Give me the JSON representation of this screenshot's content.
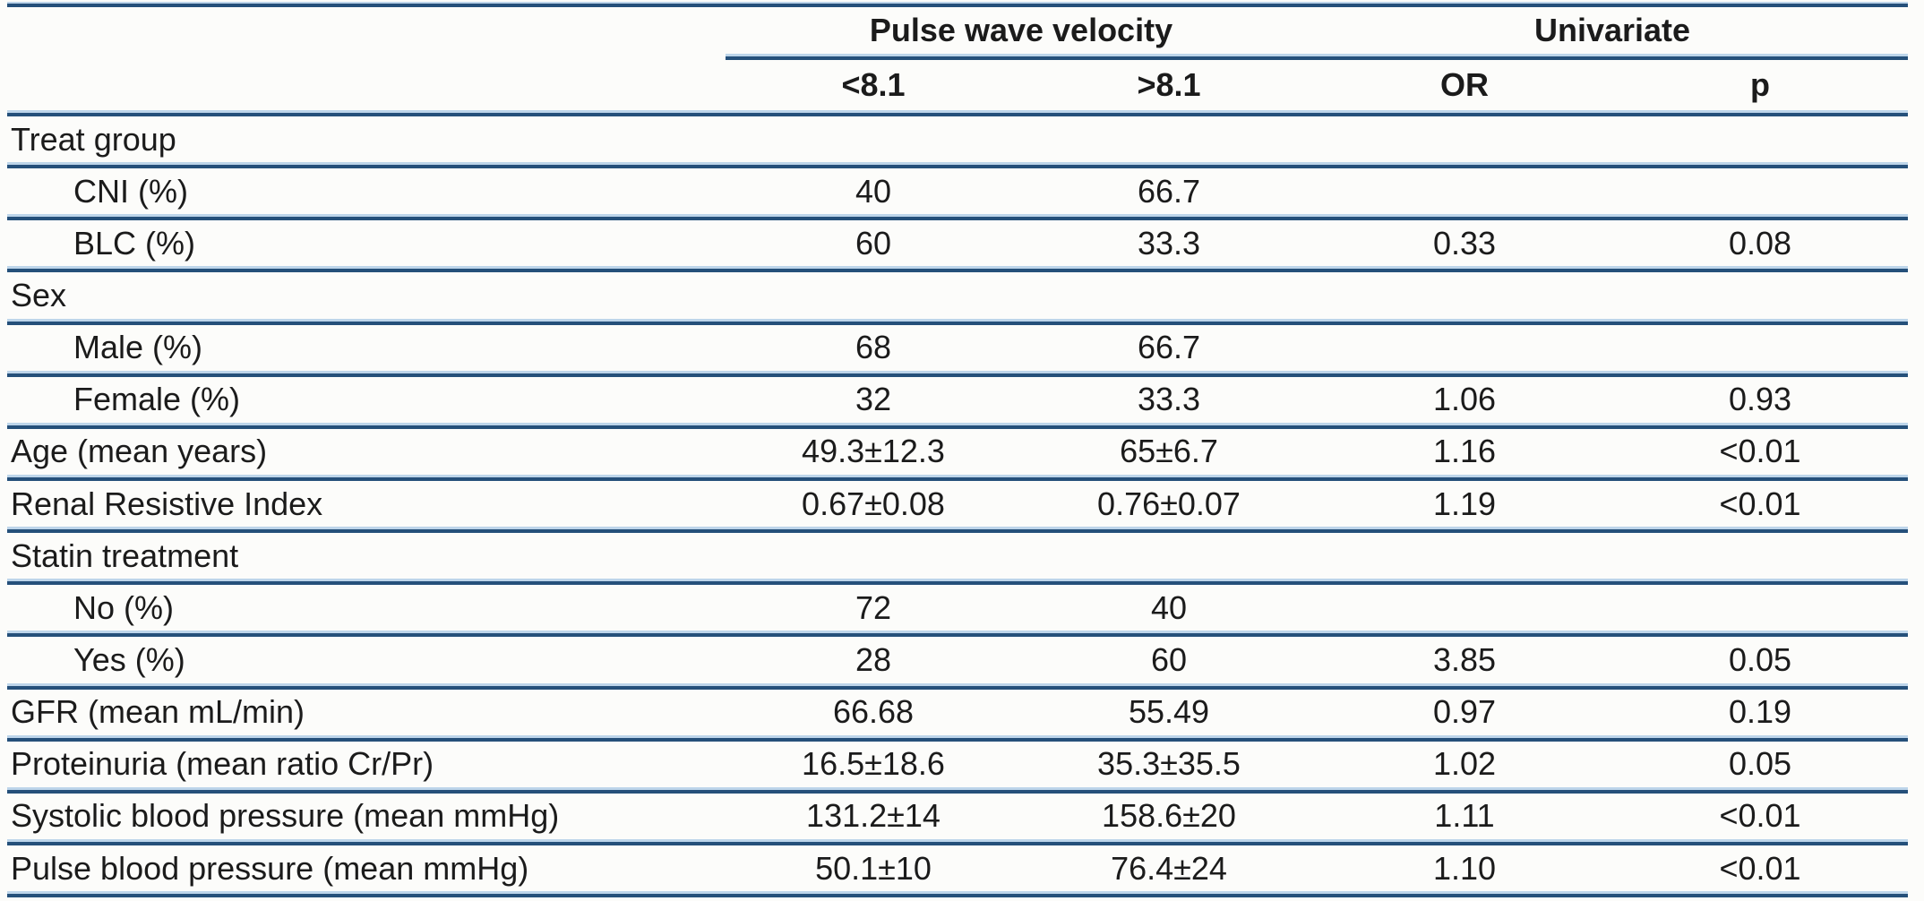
{
  "table": {
    "col_groups": [
      {
        "label": "Pulse wave velocity",
        "columns": [
          "<8.1",
          ">8.1"
        ]
      },
      {
        "label": "Univariate",
        "columns": [
          "OR",
          "p"
        ]
      }
    ],
    "sub_headers": [
      "<8.1",
      ">8.1",
      "OR",
      "p"
    ],
    "rows": [
      {
        "label": "Treat group",
        "indent": false,
        "values": [
          "",
          "",
          "",
          ""
        ]
      },
      {
        "label": "CNI (%)",
        "indent": true,
        "values": [
          "40",
          "66.7",
          "",
          ""
        ]
      },
      {
        "label": "BLC (%)",
        "indent": true,
        "values": [
          "60",
          "33.3",
          "0.33",
          "0.08"
        ]
      },
      {
        "label": "Sex",
        "indent": false,
        "values": [
          "",
          "",
          "",
          ""
        ]
      },
      {
        "label": "Male (%)",
        "indent": true,
        "values": [
          "68",
          "66.7",
          "",
          ""
        ]
      },
      {
        "label": "Female (%)",
        "indent": true,
        "values": [
          "32",
          "33.3",
          "1.06",
          "0.93"
        ]
      },
      {
        "label": "Age (mean years)",
        "indent": false,
        "values": [
          "49.3±12.3",
          "65±6.7",
          "1.16",
          "<0.01"
        ]
      },
      {
        "label": "Renal Resistive Index",
        "indent": false,
        "values": [
          "0.67±0.08",
          "0.76±0.07",
          "1.19",
          "<0.01"
        ]
      },
      {
        "label": "Statin treatment",
        "indent": false,
        "values": [
          "",
          "",
          "",
          ""
        ]
      },
      {
        "label": "No (%)",
        "indent": true,
        "values": [
          "72",
          "40",
          "",
          ""
        ]
      },
      {
        "label": "Yes (%)",
        "indent": true,
        "values": [
          "28",
          "60",
          "3.85",
          "0.05"
        ]
      },
      {
        "label": "GFR (mean mL/min)",
        "indent": false,
        "values": [
          "66.68",
          "55.49",
          "0.97",
          "0.19"
        ]
      },
      {
        "label": "Proteinuria (mean ratio Cr/Pr)",
        "indent": false,
        "values": [
          "16.5±18.6",
          "35.3±35.5",
          "1.02",
          "0.05"
        ]
      },
      {
        "label": "Systolic blood pressure (mean mmHg)",
        "indent": false,
        "values": [
          "131.2±14",
          "158.6±20",
          "1.11",
          "<0.01"
        ]
      },
      {
        "label": "Pulse blood pressure (mean mmHg)",
        "indent": false,
        "values": [
          "50.1±10",
          "76.4±24",
          "1.10",
          "<0.01"
        ]
      }
    ],
    "colors": {
      "rule_dark": "#25507a",
      "rule_light": "#bdd5ea",
      "text": "#1b1b1b",
      "background": "#fcfcfa"
    }
  }
}
